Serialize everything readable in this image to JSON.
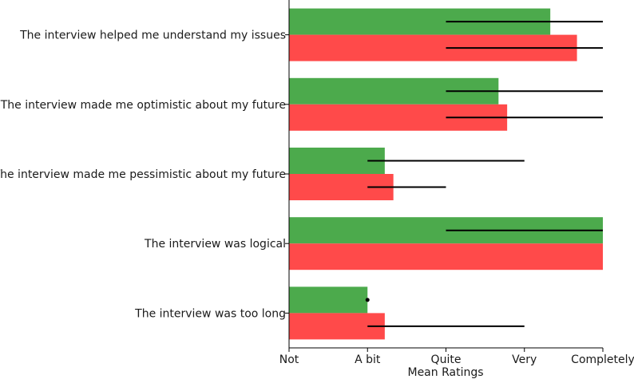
{
  "chart_data": {
    "type": "bar",
    "orientation": "horizontal",
    "xlabel": "Mean Ratings",
    "xlim": [
      0,
      4
    ],
    "x_ticks": [
      {
        "value": 0,
        "label": "Not"
      },
      {
        "value": 1,
        "label": "A bit"
      },
      {
        "value": 2,
        "label": "Quite"
      },
      {
        "value": 3,
        "label": "Very"
      },
      {
        "value": 4,
        "label": "Completely"
      }
    ],
    "grid": false,
    "legend": null,
    "categories": [
      "The interview helped me understand my issues",
      "The interview made me optimistic about my future",
      "The interview made me pessimistic about my future",
      "The interview was logical",
      "The interview was too long"
    ],
    "series": [
      {
        "color": "#4caa4c",
        "values": [
          3.33,
          2.67,
          1.22,
          4.0,
          1.0
        ],
        "error_low": [
          2.0,
          2.0,
          1.0,
          2.0,
          1.0
        ],
        "error_high": [
          4.0,
          4.0,
          3.0,
          4.0,
          1.0
        ]
      },
      {
        "color": "#ff4a4a",
        "values": [
          3.67,
          2.78,
          1.33,
          4.0,
          1.22
        ],
        "error_low": [
          2.0,
          2.0,
          1.0,
          null,
          1.0
        ],
        "error_high": [
          4.0,
          4.0,
          2.0,
          null,
          3.0
        ]
      }
    ]
  }
}
